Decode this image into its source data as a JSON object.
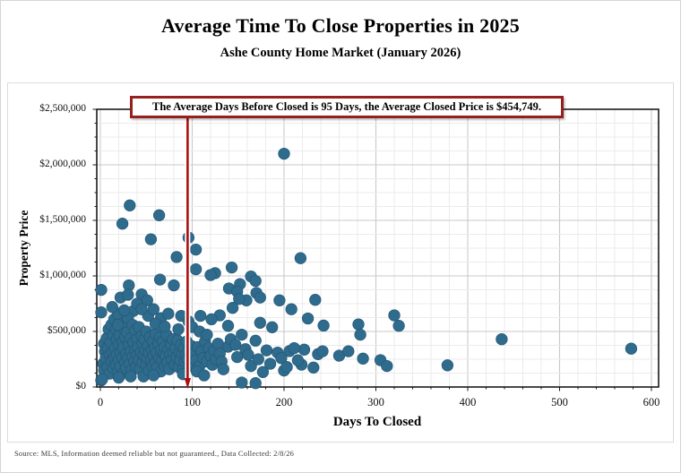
{
  "header": {
    "title": "Average Time To Close Properties in 2025",
    "subtitle": "Ashe County Home Market (January 2026)"
  },
  "annotation": {
    "text": "The Average Days Before Closed is 95 Days, the Average Closed Price is $454,749.",
    "avg_days": 95,
    "avg_price": "$454,749"
  },
  "footer": {
    "source": "Source: MLS, Information deemed reliable but not guaranteed., Data Collected: 2/8/26"
  },
  "chart_data": {
    "type": "scatter",
    "title": "Average Time To Close Properties in 2025",
    "subtitle": "Ashe County Home Market (January 2026)",
    "xlabel": "Days To Closed",
    "ylabel": "Property Price",
    "xlim": [
      0,
      600
    ],
    "ylim": [
      0,
      2500000
    ],
    "x_tick_values": [
      0,
      100,
      200,
      300,
      400,
      500,
      600
    ],
    "x_tick_labels": [
      "0",
      "100",
      "200",
      "300",
      "400",
      "500",
      "600"
    ],
    "y_tick_values": [
      0,
      500000,
      1000000,
      1500000,
      2000000,
      2500000
    ],
    "y_tick_labels": [
      "$0",
      "$500,000",
      "$1,000,000",
      "$1,500,000",
      "$2,000,000",
      "$2,500,000"
    ],
    "x_minor_step": 20,
    "y_minor_step": 125000,
    "grid": "major+minor",
    "legend": "none",
    "average_line": {
      "x": 95,
      "label": "95 Days",
      "color": "#aa1111"
    },
    "colors": {
      "dot": "#2f6b8c",
      "dot_edge": "#245876",
      "annotation_border": "#96201d",
      "major_grid": "#c9c9c9",
      "minor_grid": "#ebebeb",
      "axis": "#1a1a1a"
    },
    "points": [
      [
        200,
        2100000
      ],
      [
        218,
        1160000
      ],
      [
        32,
        1635000
      ],
      [
        24,
        1470000
      ],
      [
        64,
        1546000
      ],
      [
        55,
        1330000
      ],
      [
        96,
        1345000
      ],
      [
        104,
        1237000
      ],
      [
        83,
        1170000
      ],
      [
        104,
        1060000
      ],
      [
        125,
        1025000
      ],
      [
        120,
        1008000
      ],
      [
        143,
        1076000
      ],
      [
        65,
        967000
      ],
      [
        31,
        915000
      ],
      [
        80,
        915000
      ],
      [
        1,
        874000
      ],
      [
        152,
        927000
      ],
      [
        164,
        995000
      ],
      [
        169,
        955000
      ],
      [
        140,
        887000
      ],
      [
        149,
        860000
      ],
      [
        170,
        847000
      ],
      [
        22,
        806000
      ],
      [
        45,
        834000
      ],
      [
        51,
        780000
      ],
      [
        36,
        685000
      ],
      [
        23,
        632000
      ],
      [
        1,
        672000
      ],
      [
        4,
        390000
      ],
      [
        9,
        417000
      ],
      [
        1,
        60000
      ],
      [
        159,
        780000
      ],
      [
        195,
        780000
      ],
      [
        234,
        785000
      ],
      [
        151,
        793000
      ],
      [
        174,
        806000
      ],
      [
        130,
        645000
      ],
      [
        144,
        712000
      ],
      [
        208,
        700000
      ],
      [
        226,
        617000
      ],
      [
        243,
        553000
      ],
      [
        139,
        551000
      ],
      [
        154,
        471000
      ],
      [
        174,
        578000
      ],
      [
        187,
        538000
      ],
      [
        169,
        417000
      ],
      [
        139,
        363000
      ],
      [
        125,
        310000
      ],
      [
        149,
        269000
      ],
      [
        164,
        189000
      ],
      [
        177,
        135000
      ],
      [
        193,
        310000
      ],
      [
        206,
        323000
      ],
      [
        222,
        336000
      ],
      [
        237,
        296000
      ],
      [
        219,
        202000
      ],
      [
        232,
        175000
      ],
      [
        200,
        148000
      ],
      [
        154,
        40000
      ],
      [
        169,
        35000
      ],
      [
        242,
        322000
      ],
      [
        260,
        282000
      ],
      [
        270,
        322000
      ],
      [
        281,
        564000
      ],
      [
        283,
        471000
      ],
      [
        286,
        256000
      ],
      [
        320,
        645000
      ],
      [
        325,
        551000
      ],
      [
        305,
        242000
      ],
      [
        312,
        189000
      ],
      [
        378,
        195000
      ],
      [
        437,
        430000
      ],
      [
        578,
        345000
      ],
      [
        3,
        210000
      ],
      [
        4,
        150000
      ],
      [
        5,
        320000
      ],
      [
        6,
        260000
      ],
      [
        7,
        440000
      ],
      [
        8,
        180000
      ],
      [
        8,
        350000
      ],
      [
        9,
        520000
      ],
      [
        10,
        120000
      ],
      [
        10,
        290000
      ],
      [
        11,
        400000
      ],
      [
        12,
        230000
      ],
      [
        12,
        560000
      ],
      [
        13,
        310000
      ],
      [
        14,
        170000
      ],
      [
        14,
        470000
      ],
      [
        15,
        260000
      ],
      [
        15,
        610000
      ],
      [
        16,
        350000
      ],
      [
        17,
        200000
      ],
      [
        17,
        520000
      ],
      [
        18,
        290000
      ],
      [
        18,
        430000
      ],
      [
        19,
        140000
      ],
      [
        19,
        660000
      ],
      [
        20,
        380000
      ],
      [
        20,
        240000
      ],
      [
        21,
        470000
      ],
      [
        22,
        310000
      ],
      [
        22,
        180000
      ],
      [
        23,
        540000
      ],
      [
        24,
        260000
      ],
      [
        24,
        400000
      ],
      [
        25,
        130000
      ],
      [
        25,
        350000
      ],
      [
        26,
        580000
      ],
      [
        27,
        220000
      ],
      [
        27,
        450000
      ],
      [
        28,
        300000
      ],
      [
        28,
        170000
      ],
      [
        29,
        490000
      ],
      [
        30,
        260000
      ],
      [
        30,
        620000
      ],
      [
        31,
        380000
      ],
      [
        32,
        210000
      ],
      [
        33,
        440000
      ],
      [
        33,
        320000
      ],
      [
        34,
        150000
      ],
      [
        35,
        560000
      ],
      [
        35,
        270000
      ],
      [
        36,
        400000
      ],
      [
        37,
        230000
      ],
      [
        38,
        330000
      ],
      [
        38,
        510000
      ],
      [
        39,
        180000
      ],
      [
        40,
        290000
      ],
      [
        40,
        430000
      ],
      [
        41,
        360000
      ],
      [
        42,
        240000
      ],
      [
        42,
        540000
      ],
      [
        43,
        160000
      ],
      [
        44,
        310000
      ],
      [
        45,
        460000
      ],
      [
        46,
        220000
      ],
      [
        46,
        390000
      ],
      [
        47,
        95000
      ],
      [
        47,
        290000
      ],
      [
        48,
        430000
      ],
      [
        49,
        330000
      ],
      [
        50,
        200000
      ],
      [
        50,
        500000
      ],
      [
        51,
        260000
      ],
      [
        52,
        370000
      ],
      [
        53,
        150000
      ],
      [
        53,
        310000
      ],
      [
        54,
        450000
      ],
      [
        55,
        240000
      ],
      [
        56,
        330000
      ],
      [
        57,
        410000
      ],
      [
        57,
        190000
      ],
      [
        58,
        280000
      ],
      [
        59,
        350000
      ],
      [
        60,
        220000
      ],
      [
        60,
        480000
      ],
      [
        61,
        310000
      ],
      [
        62,
        180000
      ],
      [
        63,
        390000
      ],
      [
        64,
        260000
      ],
      [
        65,
        450000
      ],
      [
        66,
        140000
      ],
      [
        66,
        330000
      ],
      [
        67,
        240000
      ],
      [
        68,
        410000
      ],
      [
        69,
        300000
      ],
      [
        70,
        190000
      ],
      [
        70,
        360000
      ],
      [
        71,
        280000
      ],
      [
        72,
        470000
      ],
      [
        73,
        220000
      ],
      [
        74,
        340000
      ],
      [
        75,
        160000
      ],
      [
        76,
        290000
      ],
      [
        77,
        380000
      ],
      [
        78,
        250000
      ],
      [
        79,
        430000
      ],
      [
        80,
        310000
      ],
      [
        81,
        200000
      ],
      [
        82,
        350000
      ],
      [
        83,
        270000
      ],
      [
        84,
        420000
      ],
      [
        85,
        180000
      ],
      [
        86,
        310000
      ],
      [
        87,
        240000
      ],
      [
        88,
        380000
      ],
      [
        89,
        300000
      ],
      [
        90,
        160000
      ],
      [
        91,
        350000
      ],
      [
        92,
        230000
      ],
      [
        93,
        290000
      ],
      [
        94,
        410000
      ],
      [
        95,
        250000
      ],
      [
        96,
        330000
      ],
      [
        97,
        190000
      ],
      [
        98,
        280000
      ],
      [
        99,
        370000
      ],
      [
        100,
        220000
      ],
      [
        102,
        300000
      ],
      [
        104,
        240000
      ],
      [
        106,
        360000
      ],
      [
        108,
        190000
      ],
      [
        110,
        320000
      ],
      [
        112,
        260000
      ],
      [
        114,
        410000
      ],
      [
        116,
        230000
      ],
      [
        118,
        350000
      ],
      [
        120,
        280000
      ],
      [
        122,
        200000
      ],
      [
        124,
        330000
      ],
      [
        126,
        250000
      ],
      [
        128,
        390000
      ],
      [
        130,
        300000
      ],
      [
        132,
        230000
      ],
      [
        134,
        160000
      ],
      [
        13,
        720000
      ],
      [
        26,
        690000
      ],
      [
        40,
        750000
      ],
      [
        52,
        640000
      ],
      [
        58,
        700000
      ],
      [
        66,
        620000
      ],
      [
        74,
        660000
      ],
      [
        88,
        640000
      ],
      [
        96,
        590000
      ],
      [
        30,
        830000
      ],
      [
        45,
        700000
      ],
      [
        19,
        560000
      ],
      [
        60,
        570000
      ],
      [
        70,
        545000
      ],
      [
        85,
        520000
      ],
      [
        100,
        540000
      ],
      [
        108,
        500000
      ],
      [
        116,
        470000
      ],
      [
        109,
        640000
      ],
      [
        121,
        610000
      ],
      [
        2,
        70000
      ],
      [
        20,
        85000
      ],
      [
        33,
        95000
      ],
      [
        58,
        105000
      ],
      [
        90,
        115000
      ],
      [
        105,
        140000
      ],
      [
        113,
        105000
      ],
      [
        142,
        430000
      ],
      [
        147,
        380000
      ],
      [
        158,
        340000
      ],
      [
        161,
        290000
      ],
      [
        172,
        250000
      ],
      [
        181,
        330000
      ],
      [
        185,
        210000
      ],
      [
        197,
        260000
      ],
      [
        203,
        180000
      ],
      [
        211,
        350000
      ],
      [
        215,
        240000
      ]
    ]
  }
}
